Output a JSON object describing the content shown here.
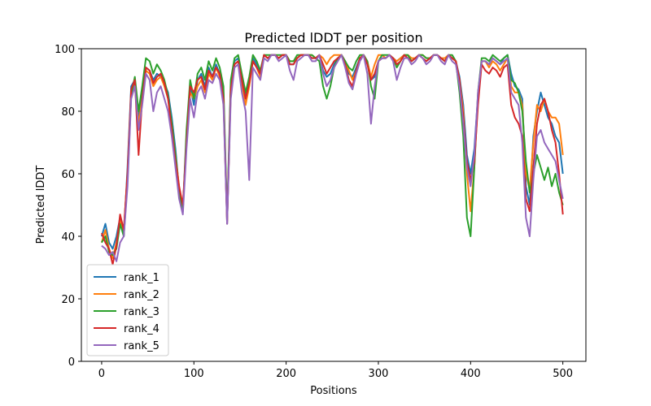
{
  "chart_data": {
    "type": "line",
    "title": "Predicted lDDT per position",
    "xlabel": "Positions",
    "ylabel": "Predicted lDDT",
    "xlim": [
      -22,
      525
    ],
    "ylim": [
      0,
      100
    ],
    "xticks": [
      0,
      100,
      200,
      300,
      400,
      500
    ],
    "yticks": [
      0,
      20,
      40,
      60,
      80,
      100
    ],
    "legend_position": "bottom-left",
    "grid": false,
    "series": [
      {
        "name": "rank_1",
        "color": "#1f77b4",
        "x": [
          0,
          4,
          8,
          12,
          16,
          20,
          24,
          28,
          32,
          36,
          40,
          44,
          48,
          52,
          56,
          60,
          64,
          68,
          72,
          76,
          80,
          84,
          88,
          92,
          96,
          100,
          104,
          108,
          112,
          116,
          120,
          124,
          128,
          132,
          136,
          140,
          144,
          148,
          152,
          156,
          160,
          164,
          168,
          172,
          176,
          180,
          184,
          188,
          192,
          196,
          200,
          204,
          208,
          212,
          216,
          220,
          224,
          228,
          232,
          236,
          240,
          244,
          248,
          252,
          256,
          260,
          264,
          268,
          272,
          276,
          280,
          284,
          288,
          292,
          296,
          300,
          304,
          308,
          312,
          316,
          320,
          324,
          328,
          332,
          336,
          340,
          344,
          348,
          352,
          356,
          360,
          364,
          368,
          372,
          376,
          380,
          384,
          388,
          392,
          396,
          400,
          404,
          408,
          412,
          416,
          420,
          424,
          428,
          432,
          436,
          440,
          444,
          448,
          452,
          456,
          460,
          464,
          468,
          472,
          476,
          480,
          484,
          488,
          492,
          496,
          500
        ],
        "y": [
          40,
          44,
          38,
          36,
          40,
          46,
          40,
          62,
          88,
          90,
          78,
          86,
          94,
          93,
          90,
          92,
          91,
          89,
          86,
          78,
          68,
          55,
          48,
          72,
          88,
          82,
          90,
          92,
          88,
          94,
          91,
          95,
          92,
          86,
          44,
          88,
          96,
          97,
          90,
          85,
          90,
          97,
          95,
          92,
          98,
          97,
          98,
          98,
          97,
          98,
          98,
          95,
          95,
          97,
          98,
          98,
          98,
          97,
          97,
          98,
          93,
          91,
          92,
          95,
          97,
          98,
          96,
          92,
          91,
          94,
          97,
          98,
          96,
          90,
          91,
          96,
          97,
          97,
          98,
          97,
          96,
          97,
          98,
          97,
          96,
          97,
          98,
          97,
          96,
          97,
          98,
          98,
          97,
          96,
          98,
          97,
          96,
          91,
          82,
          66,
          60,
          68,
          85,
          96,
          96,
          95,
          97,
          96,
          95,
          97,
          98,
          92,
          88,
          87,
          84,
          56,
          50,
          72,
          80,
          86,
          82,
          78,
          76,
          72,
          70,
          60
        ]
      },
      {
        "name": "rank_2",
        "color": "#ff7f0e",
        "x": [
          0,
          4,
          8,
          12,
          16,
          20,
          24,
          28,
          32,
          36,
          40,
          44,
          48,
          52,
          56,
          60,
          64,
          68,
          72,
          76,
          80,
          84,
          88,
          92,
          96,
          100,
          104,
          108,
          112,
          116,
          120,
          124,
          128,
          132,
          136,
          140,
          144,
          148,
          152,
          156,
          160,
          164,
          168,
          172,
          176,
          180,
          184,
          188,
          192,
          196,
          200,
          204,
          208,
          212,
          216,
          220,
          224,
          228,
          232,
          236,
          240,
          244,
          248,
          252,
          256,
          260,
          264,
          268,
          272,
          276,
          280,
          284,
          288,
          292,
          296,
          300,
          304,
          308,
          312,
          316,
          320,
          324,
          328,
          332,
          336,
          340,
          344,
          348,
          352,
          356,
          360,
          364,
          368,
          372,
          376,
          380,
          384,
          388,
          392,
          396,
          400,
          404,
          408,
          412,
          416,
          420,
          424,
          428,
          432,
          436,
          440,
          444,
          448,
          452,
          456,
          460,
          464,
          468,
          472,
          476,
          480,
          484,
          488,
          492,
          496,
          500
        ],
        "y": [
          38,
          42,
          36,
          33,
          38,
          45,
          42,
          60,
          86,
          89,
          76,
          84,
          93,
          92,
          88,
          90,
          91,
          88,
          84,
          76,
          66,
          56,
          49,
          70,
          86,
          84,
          88,
          90,
          86,
          92,
          90,
          94,
          91,
          84,
          45,
          86,
          95,
          96,
          89,
          82,
          88,
          96,
          94,
          91,
          98,
          97,
          98,
          98,
          97,
          98,
          98,
          96,
          96,
          97,
          98,
          98,
          98,
          98,
          97,
          98,
          97,
          95,
          97,
          98,
          98,
          98,
          96,
          93,
          90,
          93,
          97,
          98,
          96,
          91,
          95,
          98,
          98,
          97,
          98,
          97,
          96,
          97,
          98,
          98,
          97,
          97,
          98,
          98,
          97,
          97,
          98,
          98,
          97,
          97,
          98,
          97,
          96,
          90,
          80,
          60,
          48,
          62,
          84,
          96,
          96,
          94,
          96,
          95,
          93,
          95,
          97,
          88,
          86,
          86,
          82,
          60,
          55,
          70,
          82,
          80,
          84,
          80,
          78,
          78,
          76,
          66
        ]
      },
      {
        "name": "rank_3",
        "color": "#2ca02c",
        "x": [
          0,
          4,
          8,
          12,
          16,
          20,
          24,
          28,
          32,
          36,
          40,
          44,
          48,
          52,
          56,
          60,
          64,
          68,
          72,
          76,
          80,
          84,
          88,
          92,
          96,
          100,
          104,
          108,
          112,
          116,
          120,
          124,
          128,
          132,
          136,
          140,
          144,
          148,
          152,
          156,
          160,
          164,
          168,
          172,
          176,
          180,
          184,
          188,
          192,
          196,
          200,
          204,
          208,
          212,
          216,
          220,
          224,
          228,
          232,
          236,
          240,
          244,
          248,
          252,
          256,
          260,
          264,
          268,
          272,
          276,
          280,
          284,
          288,
          292,
          296,
          300,
          304,
          308,
          312,
          316,
          320,
          324,
          328,
          332,
          336,
          340,
          344,
          348,
          352,
          356,
          360,
          364,
          368,
          372,
          376,
          380,
          384,
          388,
          392,
          396,
          400,
          404,
          408,
          412,
          416,
          420,
          424,
          428,
          432,
          436,
          440,
          444,
          448,
          452,
          456,
          460,
          464,
          468,
          472,
          476,
          480,
          484,
          488,
          492,
          496,
          500
        ],
        "y": [
          38,
          40,
          35,
          34,
          36,
          44,
          40,
          58,
          85,
          91,
          80,
          88,
          97,
          96,
          92,
          95,
          93,
          90,
          85,
          76,
          66,
          54,
          48,
          74,
          90,
          84,
          92,
          94,
          90,
          96,
          93,
          97,
          94,
          88,
          46,
          90,
          97,
          98,
          92,
          86,
          91,
          98,
          96,
          93,
          98,
          98,
          98,
          98,
          98,
          98,
          98,
          96,
          96,
          98,
          98,
          98,
          98,
          98,
          97,
          96,
          88,
          84,
          88,
          94,
          97,
          98,
          96,
          94,
          93,
          96,
          98,
          98,
          96,
          88,
          84,
          96,
          98,
          98,
          98,
          97,
          94,
          96,
          98,
          98,
          96,
          97,
          98,
          98,
          97,
          97,
          98,
          98,
          97,
          96,
          98,
          98,
          96,
          86,
          72,
          46,
          40,
          62,
          86,
          97,
          97,
          96,
          98,
          97,
          96,
          97,
          98,
          90,
          89,
          86,
          80,
          64,
          54,
          60,
          66,
          62,
          58,
          62,
          56,
          60,
          54,
          50
        ]
      },
      {
        "name": "rank_4",
        "color": "#d62728",
        "x": [
          0,
          4,
          8,
          12,
          16,
          20,
          24,
          28,
          32,
          36,
          40,
          44,
          48,
          52,
          56,
          60,
          64,
          68,
          72,
          76,
          80,
          84,
          88,
          92,
          96,
          100,
          104,
          108,
          112,
          116,
          120,
          124,
          128,
          132,
          136,
          140,
          144,
          148,
          152,
          156,
          160,
          164,
          168,
          172,
          176,
          180,
          184,
          188,
          192,
          196,
          200,
          204,
          208,
          212,
          216,
          220,
          224,
          228,
          232,
          236,
          240,
          244,
          248,
          252,
          256,
          260,
          264,
          268,
          272,
          276,
          280,
          284,
          288,
          292,
          296,
          300,
          304,
          308,
          312,
          316,
          320,
          324,
          328,
          332,
          336,
          340,
          344,
          348,
          352,
          356,
          360,
          364,
          368,
          372,
          376,
          380,
          384,
          388,
          392,
          396,
          400,
          404,
          408,
          412,
          416,
          420,
          424,
          428,
          432,
          436,
          440,
          444,
          448,
          452,
          456,
          460,
          464,
          468,
          472,
          476,
          480,
          484,
          488,
          492,
          496,
          500
        ],
        "y": [
          41,
          38,
          36,
          31,
          37,
          47,
          42,
          60,
          87,
          90,
          66,
          84,
          94,
          93,
          89,
          91,
          92,
          89,
          84,
          74,
          64,
          56,
          50,
          70,
          88,
          86,
          90,
          91,
          87,
          93,
          91,
          94,
          92,
          84,
          44,
          87,
          95,
          96,
          90,
          84,
          89,
          96,
          94,
          92,
          98,
          97,
          98,
          98,
          97,
          98,
          98,
          95,
          95,
          97,
          98,
          98,
          98,
          97,
          97,
          98,
          95,
          92,
          94,
          96,
          97,
          98,
          95,
          90,
          88,
          93,
          97,
          98,
          95,
          90,
          92,
          96,
          97,
          97,
          98,
          97,
          95,
          96,
          98,
          97,
          96,
          97,
          98,
          97,
          96,
          97,
          98,
          98,
          97,
          96,
          98,
          97,
          96,
          90,
          78,
          64,
          58,
          64,
          82,
          95,
          93,
          92,
          94,
          93,
          91,
          94,
          95,
          82,
          78,
          76,
          72,
          52,
          48,
          62,
          76,
          82,
          84,
          80,
          74,
          70,
          60,
          47
        ]
      },
      {
        "name": "rank_5",
        "color": "#9467bd",
        "x": [
          0,
          4,
          8,
          12,
          16,
          20,
          24,
          28,
          32,
          36,
          40,
          44,
          48,
          52,
          56,
          60,
          64,
          68,
          72,
          76,
          80,
          84,
          88,
          92,
          96,
          100,
          104,
          108,
          112,
          116,
          120,
          124,
          128,
          132,
          136,
          140,
          144,
          148,
          152,
          156,
          160,
          164,
          168,
          172,
          176,
          180,
          184,
          188,
          192,
          196,
          200,
          204,
          208,
          212,
          216,
          220,
          224,
          228,
          232,
          236,
          240,
          244,
          248,
          252,
          256,
          260,
          264,
          268,
          272,
          276,
          280,
          284,
          288,
          292,
          296,
          300,
          304,
          308,
          312,
          316,
          320,
          324,
          328,
          332,
          336,
          340,
          344,
          348,
          352,
          356,
          360,
          364,
          368,
          372,
          376,
          380,
          384,
          388,
          392,
          396,
          400,
          404,
          408,
          412,
          416,
          420,
          424,
          428,
          432,
          436,
          440,
          444,
          448,
          452,
          456,
          460,
          464,
          468,
          472,
          476,
          480,
          484,
          488,
          492,
          496,
          500
        ],
        "y": [
          37,
          36,
          34,
          35,
          32,
          38,
          40,
          56,
          84,
          88,
          74,
          82,
          92,
          90,
          80,
          86,
          88,
          84,
          80,
          72,
          62,
          52,
          47,
          68,
          84,
          78,
          86,
          88,
          84,
          90,
          89,
          92,
          90,
          82,
          44,
          84,
          94,
          95,
          86,
          80,
          58,
          94,
          92,
          90,
          97,
          96,
          98,
          98,
          96,
          97,
          98,
          93,
          90,
          96,
          97,
          98,
          98,
          96,
          96,
          98,
          92,
          88,
          90,
          94,
          96,
          98,
          94,
          89,
          87,
          92,
          96,
          98,
          92,
          76,
          88,
          96,
          97,
          97,
          98,
          96,
          90,
          94,
          97,
          97,
          95,
          96,
          98,
          97,
          95,
          96,
          98,
          98,
          96,
          95,
          98,
          96,
          95,
          88,
          76,
          62,
          56,
          66,
          86,
          96,
          96,
          95,
          97,
          96,
          95,
          96,
          97,
          86,
          84,
          82,
          70,
          46,
          40,
          58,
          72,
          74,
          70,
          68,
          66,
          64,
          58,
          52
        ]
      }
    ]
  }
}
